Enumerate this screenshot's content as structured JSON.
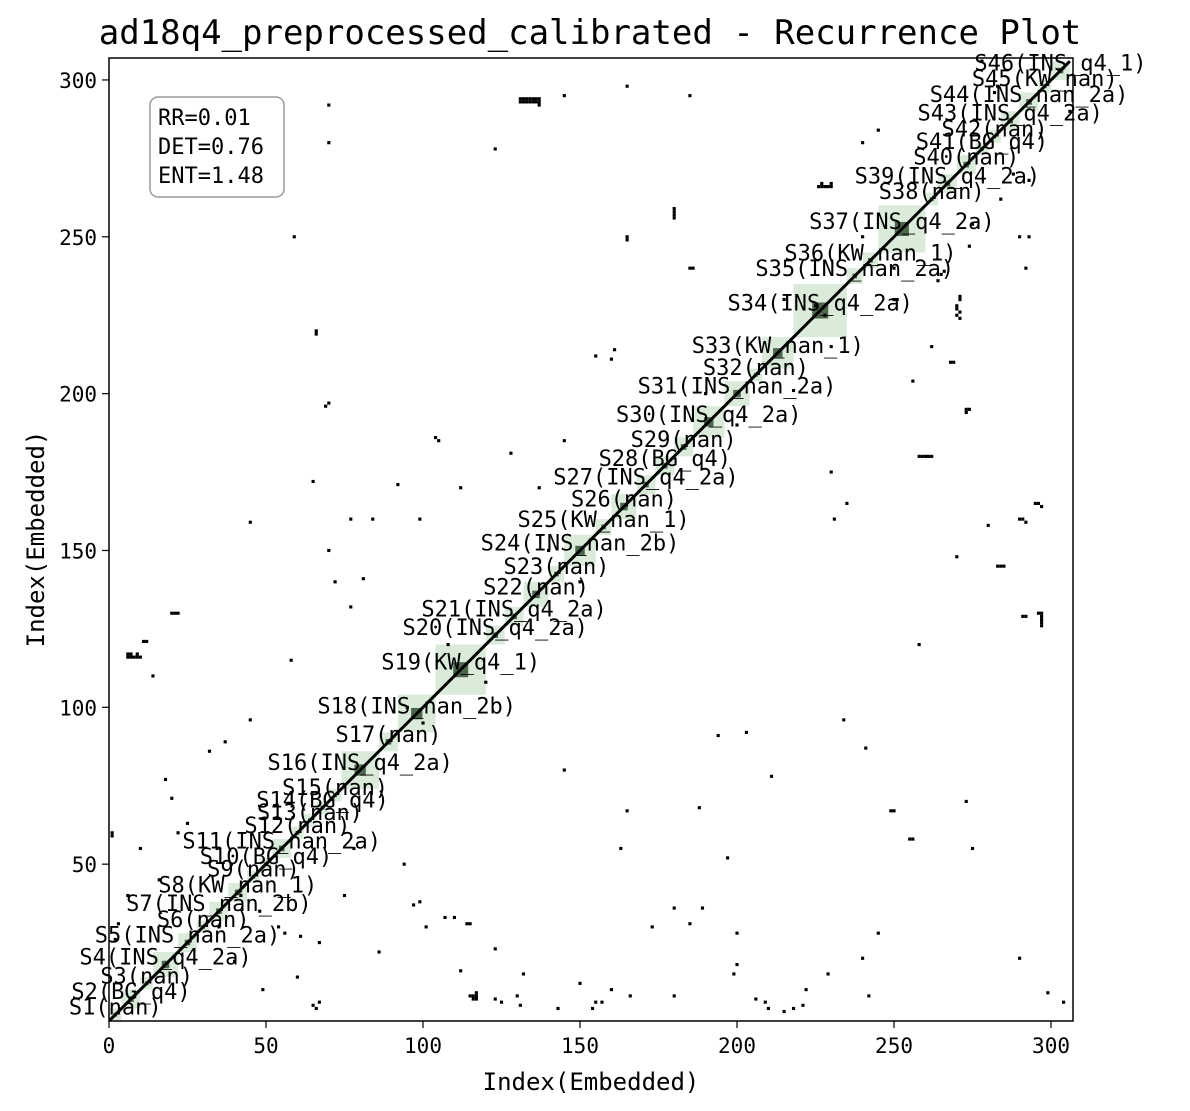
{
  "chart_data": {
    "type": "heatmap",
    "title": "ad18q4_preprocessed_calibrated - Recurrence Plot",
    "xlabel": "Index(Embedded)",
    "ylabel": "Index(Embedded)",
    "xlim": [
      0,
      307
    ],
    "ylim": [
      0,
      307
    ],
    "xticks": [
      0,
      50,
      100,
      150,
      200,
      250,
      300
    ],
    "yticks": [
      50,
      100,
      150,
      200,
      250,
      300
    ],
    "grid": false,
    "stats": {
      "rr": "RR=0.01",
      "det": "DET=0.76",
      "ent": "ENT=1.48"
    },
    "stats_placement": "top-left",
    "colors": {
      "recurrence": "#000000",
      "segment_fill": "#d3e7d3",
      "segment_recurrence": "#1d3a1d",
      "frame": "#000000"
    },
    "recurrence_diagonal": {
      "from": 0,
      "to": 306
    },
    "segments": [
      {
        "label": "S1(nan)",
        "start": 0,
        "end": 4
      },
      {
        "label": "S2(BG_q4)",
        "start": 4,
        "end": 10
      },
      {
        "label": "S3(nan)",
        "start": 10,
        "end": 14
      },
      {
        "label": "S4(INS_q4_2a)",
        "start": 14,
        "end": 22
      },
      {
        "label": "S5(INS_nan_2a)",
        "start": 22,
        "end": 28
      },
      {
        "label": "S6(nan)",
        "start": 28,
        "end": 32
      },
      {
        "label": "S7(INS_nan_2b)",
        "start": 32,
        "end": 38
      },
      {
        "label": "S8(KW_nan_1)",
        "start": 38,
        "end": 44
      },
      {
        "label": "S9(nan)",
        "start": 44,
        "end": 48
      },
      {
        "label": "S10(BG_q4)",
        "start": 48,
        "end": 52
      },
      {
        "label": "S11(INS_nan_2a)",
        "start": 52,
        "end": 58
      },
      {
        "label": "S12(nan)",
        "start": 58,
        "end": 62
      },
      {
        "label": "S13(nan)",
        "start": 62,
        "end": 66
      },
      {
        "label": "S14(BG_q4)",
        "start": 66,
        "end": 70
      },
      {
        "label": "S15(nan)",
        "start": 70,
        "end": 74
      },
      {
        "label": "S16(INS_q4_2a)",
        "start": 74,
        "end": 86
      },
      {
        "label": "S17(nan)",
        "start": 86,
        "end": 92
      },
      {
        "label": "S18(INS_nan_2b)",
        "start": 92,
        "end": 104
      },
      {
        "label": "S19(KW_q4_1)",
        "start": 104,
        "end": 120
      },
      {
        "label": "S20(INS_q4_2a)",
        "start": 120,
        "end": 126
      },
      {
        "label": "S21(INS_q4_2a)",
        "start": 126,
        "end": 132
      },
      {
        "label": "S22(nan)",
        "start": 132,
        "end": 140
      },
      {
        "label": "S23(nan)",
        "start": 140,
        "end": 145
      },
      {
        "label": "S24(INS_nan_2b)",
        "start": 145,
        "end": 155
      },
      {
        "label": "S25(KW_nan_1)",
        "start": 155,
        "end": 160
      },
      {
        "label": "S26(nan)",
        "start": 160,
        "end": 168
      },
      {
        "label": "S27(INS_q4_2a)",
        "start": 168,
        "end": 174
      },
      {
        "label": "S28(BG_q4)",
        "start": 174,
        "end": 180
      },
      {
        "label": "S29(nan)",
        "start": 180,
        "end": 186
      },
      {
        "label": "S30(INS_q4_2a)",
        "start": 186,
        "end": 196
      },
      {
        "label": "S31(INS_nan_2a)",
        "start": 196,
        "end": 204
      },
      {
        "label": "S32(nan)",
        "start": 204,
        "end": 208
      },
      {
        "label": "S33(KW_nan_1)",
        "start": 208,
        "end": 218
      },
      {
        "label": "S34(INS_q4_2a)",
        "start": 218,
        "end": 235
      },
      {
        "label": "S35(INS_nan_2a)",
        "start": 235,
        "end": 240
      },
      {
        "label": "S36(KW_nan_1)",
        "start": 240,
        "end": 245
      },
      {
        "label": "S37(INS_q4_2a)",
        "start": 245,
        "end": 260
      },
      {
        "label": "S38(nan)",
        "start": 260,
        "end": 264
      },
      {
        "label": "S39(INS_q4_2a)",
        "start": 264,
        "end": 270
      },
      {
        "label": "S40(nan)",
        "start": 270,
        "end": 276
      },
      {
        "label": "S41(BG_q4)",
        "start": 276,
        "end": 280
      },
      {
        "label": "S42(nan)",
        "start": 280,
        "end": 284
      },
      {
        "label": "S43(INS_q4_2a)",
        "start": 284,
        "end": 290
      },
      {
        "label": "S44(INS_nan_2a)",
        "start": 290,
        "end": 296
      },
      {
        "label": "S45(KW_nan)",
        "start": 296,
        "end": 300
      },
      {
        "label": "S46(INS_q4_1)",
        "start": 300,
        "end": 306
      }
    ],
    "recurrence_points": [
      [
        131,
        294
      ],
      [
        132,
        294
      ],
      [
        133,
        294
      ],
      [
        134,
        294
      ],
      [
        135,
        294
      ],
      [
        136,
        294
      ],
      [
        137,
        294
      ],
      [
        131,
        293
      ],
      [
        132,
        293
      ],
      [
        133,
        293
      ],
      [
        134,
        293
      ],
      [
        135,
        293
      ],
      [
        136,
        293
      ],
      [
        137,
        293
      ],
      [
        137,
        292
      ],
      [
        165,
        298
      ],
      [
        123,
        278
      ],
      [
        70,
        292
      ],
      [
        145,
        295
      ],
      [
        185,
        295
      ],
      [
        283,
        298
      ],
      [
        230,
        266
      ],
      [
        226,
        266
      ],
      [
        227,
        266
      ],
      [
        228,
        266
      ],
      [
        229,
        266
      ],
      [
        230,
        267
      ],
      [
        227,
        267
      ],
      [
        180,
        259
      ],
      [
        180,
        258
      ],
      [
        180,
        257
      ],
      [
        180,
        256
      ],
      [
        165,
        249
      ],
      [
        165,
        250
      ],
      [
        70,
        280
      ],
      [
        6,
        116
      ],
      [
        7,
        116
      ],
      [
        8,
        116
      ],
      [
        9,
        116
      ],
      [
        10,
        116
      ],
      [
        6,
        117
      ],
      [
        7,
        117
      ],
      [
        9,
        117
      ],
      [
        11,
        121
      ],
      [
        12,
        121
      ],
      [
        20,
        130
      ],
      [
        21,
        130
      ],
      [
        22,
        130
      ],
      [
        59,
        250
      ],
      [
        66,
        219
      ],
      [
        66,
        220
      ],
      [
        70,
        197
      ],
      [
        69,
        196
      ],
      [
        65,
        172
      ],
      [
        77,
        160
      ],
      [
        70,
        150
      ],
      [
        72,
        140
      ],
      [
        45,
        159
      ],
      [
        105,
        185
      ],
      [
        104,
        186
      ],
      [
        230,
        175
      ],
      [
        235,
        165
      ],
      [
        231,
        160
      ],
      [
        258,
        180
      ],
      [
        259,
        180
      ],
      [
        260,
        180
      ],
      [
        261,
        180
      ],
      [
        262,
        180
      ],
      [
        273,
        195
      ],
      [
        274,
        195
      ],
      [
        273,
        194
      ],
      [
        295,
        165
      ],
      [
        296,
        165
      ],
      [
        297,
        164
      ],
      [
        290,
        160
      ],
      [
        291,
        160
      ],
      [
        292,
        159
      ],
      [
        296,
        130
      ],
      [
        297,
        130
      ],
      [
        297,
        129
      ],
      [
        297,
        128
      ],
      [
        297,
        127
      ],
      [
        297,
        126
      ],
      [
        292,
        129
      ],
      [
        291,
        129
      ],
      [
        285,
        145
      ],
      [
        284,
        145
      ],
      [
        283,
        145
      ],
      [
        270,
        148
      ],
      [
        280,
        158
      ],
      [
        271,
        231
      ],
      [
        271,
        230
      ],
      [
        270,
        228
      ],
      [
        270,
        227
      ],
      [
        271,
        226
      ],
      [
        270,
        225
      ],
      [
        271,
        224
      ],
      [
        258,
        120
      ],
      [
        268,
        210
      ],
      [
        269,
        210
      ],
      [
        250,
        230
      ],
      [
        251,
        230
      ],
      [
        290,
        250
      ],
      [
        293,
        250
      ],
      [
        292,
        240
      ],
      [
        255,
        58
      ],
      [
        256,
        58
      ],
      [
        273,
        70
      ],
      [
        275,
        55
      ],
      [
        290,
        20
      ],
      [
        203,
        92
      ],
      [
        211,
        78
      ],
      [
        188,
        68
      ],
      [
        163,
        55
      ],
      [
        145,
        80
      ],
      [
        197,
        52
      ],
      [
        165,
        67
      ],
      [
        110,
        33
      ],
      [
        97,
        37
      ],
      [
        123,
        23
      ],
      [
        130,
        8
      ],
      [
        116,
        8
      ],
      [
        117,
        8
      ],
      [
        116,
        7
      ],
      [
        117,
        7
      ],
      [
        115,
        8
      ],
      [
        117,
        9
      ],
      [
        123,
        7
      ],
      [
        125,
        6
      ],
      [
        131,
        5
      ],
      [
        143,
        4
      ],
      [
        155,
        6
      ],
      [
        157,
        6
      ],
      [
        154,
        4
      ],
      [
        166,
        8
      ],
      [
        185,
        31
      ],
      [
        189,
        36
      ],
      [
        180,
        36
      ],
      [
        173,
        30
      ],
      [
        206,
        7
      ],
      [
        209,
        6
      ],
      [
        215,
        3
      ],
      [
        210,
        4
      ],
      [
        194,
        91
      ],
      [
        200,
        28
      ],
      [
        245,
        28
      ],
      [
        240,
        20
      ],
      [
        229,
        15
      ],
      [
        221,
        5
      ],
      [
        218,
        4
      ],
      [
        222,
        10
      ],
      [
        65,
        5
      ],
      [
        67,
        6
      ],
      [
        66,
        4
      ],
      [
        1,
        59
      ],
      [
        1,
        60
      ],
      [
        14,
        110
      ],
      [
        18,
        77
      ],
      [
        22,
        60
      ],
      [
        39,
        50
      ],
      [
        42,
        40
      ],
      [
        48,
        35
      ],
      [
        54,
        30
      ],
      [
        61,
        27
      ],
      [
        67,
        25
      ],
      [
        75,
        40
      ],
      [
        78,
        55
      ],
      [
        94,
        50
      ],
      [
        99,
        38
      ],
      [
        101,
        30
      ],
      [
        107,
        33
      ],
      [
        112,
        16
      ],
      [
        132,
        15
      ],
      [
        150,
        12
      ],
      [
        160,
        10
      ],
      [
        180,
        8
      ],
      [
        199,
        15
      ],
      [
        242,
        8
      ],
      [
        299,
        9
      ],
      [
        304,
        6
      ],
      [
        115,
        31
      ],
      [
        114,
        31
      ],
      [
        35,
        30
      ],
      [
        200,
        18
      ],
      [
        249,
        67
      ],
      [
        250,
        67
      ],
      [
        241,
        87
      ],
      [
        234,
        96
      ],
      [
        218,
        201
      ],
      [
        256,
        204
      ],
      [
        262,
        215
      ],
      [
        264,
        236
      ],
      [
        265,
        238
      ],
      [
        266,
        239
      ],
      [
        274,
        247
      ],
      [
        275,
        254
      ],
      [
        284,
        262
      ],
      [
        288,
        270
      ],
      [
        293,
        268
      ],
      [
        306,
        290
      ],
      [
        282,
        296
      ],
      [
        278,
        306
      ],
      [
        240,
        280
      ],
      [
        245,
        284
      ],
      [
        185,
        240
      ],
      [
        186,
        240
      ],
      [
        160,
        211
      ],
      [
        161,
        214
      ],
      [
        155,
        212
      ],
      [
        145,
        185
      ],
      [
        137,
        170
      ],
      [
        128,
        181
      ],
      [
        112,
        170
      ],
      [
        99,
        160
      ],
      [
        92,
        171
      ],
      [
        84,
        160
      ],
      [
        81,
        141
      ],
      [
        77,
        132
      ],
      [
        58,
        115
      ],
      [
        45,
        96
      ],
      [
        37,
        89
      ],
      [
        32,
        86
      ],
      [
        20,
        71
      ],
      [
        10,
        55
      ],
      [
        16,
        45
      ],
      [
        25,
        63
      ],
      [
        2,
        26
      ],
      [
        3,
        31
      ],
      [
        6,
        40
      ],
      [
        49,
        10
      ],
      [
        60,
        14
      ],
      [
        86,
        22
      ],
      [
        56,
        28
      ],
      [
        40,
        19
      ],
      [
        95,
        100
      ],
      [
        100,
        95
      ],
      [
        150,
        140
      ],
      [
        140,
        150
      ],
      [
        200,
        190
      ],
      [
        190,
        200
      ],
      [
        250,
        240
      ],
      [
        240,
        250
      ],
      [
        120,
        108
      ],
      [
        108,
        120
      ],
      [
        230,
        215
      ],
      [
        215,
        230
      ],
      [
        225,
        228
      ],
      [
        228,
        225
      ]
    ]
  }
}
